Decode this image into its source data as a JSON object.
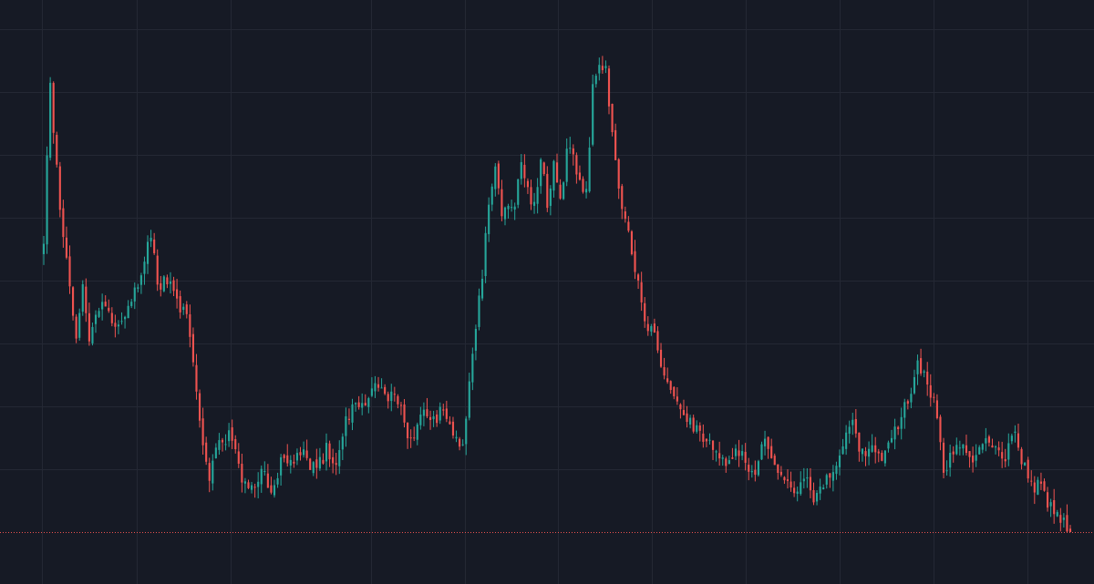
{
  "theme": {
    "background": "#161a25",
    "grid": "#242834",
    "up_color": "#26a69a",
    "down_color": "#ef5350",
    "price_line_color": "#ef5350"
  },
  "chart_data": {
    "type": "candlestick",
    "title": "",
    "xlabel": "",
    "ylabel": "",
    "grid": true,
    "legend": "none",
    "axis_labels_visible": false,
    "ylim": [
      0,
      100
    ],
    "last_price": 0,
    "anchors": [
      [
        0,
        57
      ],
      [
        2,
        86
      ],
      [
        5,
        63
      ],
      [
        8,
        48
      ],
      [
        10,
        37
      ],
      [
        12,
        47
      ],
      [
        14,
        38
      ],
      [
        17,
        44
      ],
      [
        20,
        41
      ],
      [
        24,
        40
      ],
      [
        27,
        43
      ],
      [
        30,
        51
      ],
      [
        33,
        58
      ],
      [
        35,
        47
      ],
      [
        37,
        49
      ],
      [
        40,
        46
      ],
      [
        43,
        42
      ],
      [
        45,
        39
      ],
      [
        47,
        27
      ],
      [
        49,
        18
      ],
      [
        51,
        11
      ],
      [
        53,
        17
      ],
      [
        55,
        16
      ],
      [
        57,
        20
      ],
      [
        59,
        16
      ],
      [
        61,
        11
      ],
      [
        64,
        9
      ],
      [
        67,
        11
      ],
      [
        70,
        9
      ],
      [
        73,
        13
      ],
      [
        76,
        14
      ],
      [
        79,
        15
      ],
      [
        82,
        13
      ],
      [
        85,
        13
      ],
      [
        87,
        16
      ],
      [
        89,
        12
      ],
      [
        93,
        21
      ],
      [
        96,
        25
      ],
      [
        99,
        23
      ],
      [
        102,
        29
      ],
      [
        105,
        26
      ],
      [
        108,
        28
      ],
      [
        110,
        23
      ],
      [
        112,
        19
      ],
      [
        114,
        18
      ],
      [
        116,
        22
      ],
      [
        118,
        23
      ],
      [
        120,
        21
      ],
      [
        122,
        24
      ],
      [
        125,
        22
      ],
      [
        127,
        17
      ],
      [
        129,
        18
      ],
      [
        131,
        28
      ],
      [
        133,
        40
      ],
      [
        135,
        50
      ],
      [
        137,
        62
      ],
      [
        139,
        71
      ],
      [
        141,
        60
      ],
      [
        143,
        64
      ],
      [
        145,
        63
      ],
      [
        147,
        71
      ],
      [
        149,
        67
      ],
      [
        151,
        62
      ],
      [
        153,
        71
      ],
      [
        155,
        64
      ],
      [
        157,
        71
      ],
      [
        159,
        63
      ],
      [
        161,
        73
      ],
      [
        163,
        72
      ],
      [
        165,
        67
      ],
      [
        167,
        66
      ],
      [
        169,
        85
      ],
      [
        171,
        89
      ],
      [
        173,
        89
      ],
      [
        175,
        78
      ],
      [
        177,
        66
      ],
      [
        179,
        60
      ],
      [
        181,
        55
      ],
      [
        183,
        47
      ],
      [
        185,
        39
      ],
      [
        187,
        41
      ],
      [
        189,
        36
      ],
      [
        191,
        30
      ],
      [
        193,
        27
      ],
      [
        195,
        25
      ],
      [
        197,
        23
      ],
      [
        199,
        21
      ],
      [
        201,
        19
      ],
      [
        203,
        18
      ],
      [
        205,
        17
      ],
      [
        207,
        16
      ],
      [
        209,
        15
      ],
      [
        211,
        13
      ],
      [
        213,
        15
      ],
      [
        215,
        14
      ],
      [
        217,
        11
      ],
      [
        219,
        10
      ],
      [
        221,
        17
      ],
      [
        223,
        16
      ],
      [
        225,
        14
      ],
      [
        227,
        11
      ],
      [
        229,
        9
      ],
      [
        231,
        8
      ],
      [
        233,
        9
      ],
      [
        235,
        9
      ],
      [
        237,
        7
      ],
      [
        239,
        8
      ],
      [
        241,
        10
      ],
      [
        243,
        12
      ],
      [
        245,
        15
      ],
      [
        247,
        18
      ],
      [
        249,
        21
      ],
      [
        251,
        17
      ],
      [
        253,
        16
      ],
      [
        255,
        16
      ],
      [
        257,
        14
      ],
      [
        259,
        15
      ],
      [
        261,
        18
      ],
      [
        263,
        20
      ],
      [
        265,
        24
      ],
      [
        267,
        28
      ],
      [
        269,
        32
      ],
      [
        271,
        31
      ],
      [
        273,
        27
      ],
      [
        275,
        22
      ],
      [
        277,
        11
      ],
      [
        279,
        14
      ],
      [
        281,
        18
      ],
      [
        283,
        17
      ],
      [
        285,
        13
      ],
      [
        287,
        15
      ],
      [
        289,
        17
      ],
      [
        291,
        17
      ],
      [
        293,
        15
      ],
      [
        295,
        14
      ],
      [
        297,
        16
      ],
      [
        299,
        18
      ],
      [
        301,
        13
      ],
      [
        303,
        11
      ],
      [
        305,
        9
      ],
      [
        307,
        8
      ],
      [
        309,
        6
      ],
      [
        311,
        4
      ],
      [
        313,
        2
      ],
      [
        315,
        1
      ],
      [
        316,
        0
      ]
    ]
  }
}
